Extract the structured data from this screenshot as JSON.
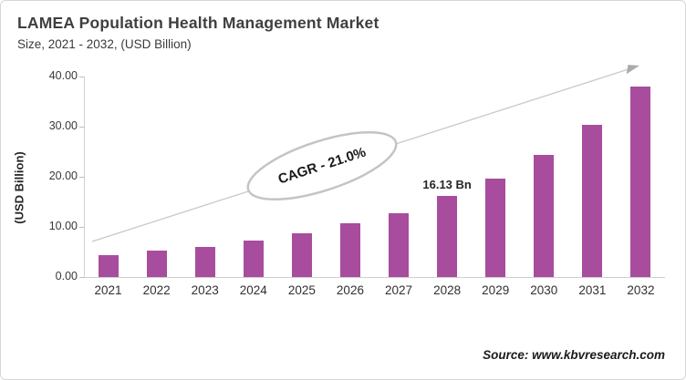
{
  "header": {
    "title": "LAMEA Population Health Management Market",
    "subtitle": "Size, 2021 - 2032, (USD Billion)"
  },
  "chart_data": {
    "type": "bar",
    "title": "LAMEA Population Health Management Market Size, 2021 - 2032, (USD Billion)",
    "categories": [
      "2021",
      "2022",
      "2023",
      "2024",
      "2025",
      "2026",
      "2027",
      "2028",
      "2029",
      "2030",
      "2031",
      "2032"
    ],
    "values": [
      4.4,
      5.2,
      6.0,
      7.2,
      8.7,
      10.7,
      12.8,
      16.13,
      19.7,
      24.4,
      30.4,
      38.0
    ],
    "xlabel": "",
    "ylabel": "(USD Billion)",
    "ylim": [
      0,
      40
    ],
    "ytick_labels": [
      "0.00",
      "10.00",
      "20.00",
      "30.00",
      "40.00"
    ],
    "grid": false,
    "legend": false,
    "bar_color": "#a84c9e",
    "annotations": {
      "bar_value_label": {
        "category": "2028",
        "text": "16.13 Bn"
      },
      "cagr_label": "CAGR - 21.0%",
      "trend_arrow": "upward trend arrow from 2021 toward 2032"
    }
  },
  "footer": {
    "source": "Source: www.kbvresearch.com"
  }
}
